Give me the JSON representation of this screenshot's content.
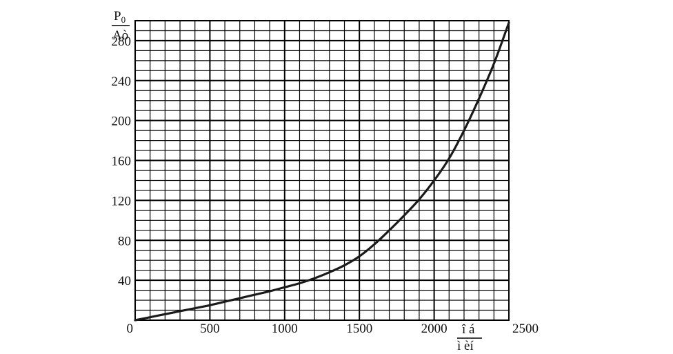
{
  "chart_data": {
    "type": "line",
    "title": "",
    "ylabel": {
      "top": "P",
      "sub": "0",
      "bottom": "Aò"
    },
    "xlabel": {
      "top": "î á",
      "bottom": "ì èí"
    },
    "xlim": [
      0,
      2500
    ],
    "ylim": [
      0,
      300
    ],
    "grid": true,
    "x_ticks": [
      0,
      500,
      1000,
      1500,
      2000,
      2500
    ],
    "y_ticks": [
      40,
      80,
      120,
      160,
      200,
      240,
      280
    ],
    "x_tick_labels": [
      "0",
      "500",
      "1000",
      "1500",
      "2000",
      "2500"
    ],
    "y_tick_labels": [
      "40",
      "80",
      "120",
      "160",
      "200",
      "240",
      "280"
    ],
    "series": [
      {
        "x": [
          0,
          100,
          200,
          300,
          400,
          500,
          600,
          700,
          800,
          900,
          1000,
          1100,
          1200,
          1300,
          1400,
          1500,
          1600,
          1700,
          1800,
          1900,
          2000,
          2100,
          2200,
          2300,
          2400,
          2500
        ],
        "values": [
          0,
          3,
          6,
          9,
          12,
          15,
          18.5,
          22,
          25.5,
          29,
          33,
          37,
          42,
          48,
          55,
          64,
          76,
          90,
          105,
          121,
          140,
          162,
          190,
          222,
          257,
          298
        ]
      }
    ]
  }
}
